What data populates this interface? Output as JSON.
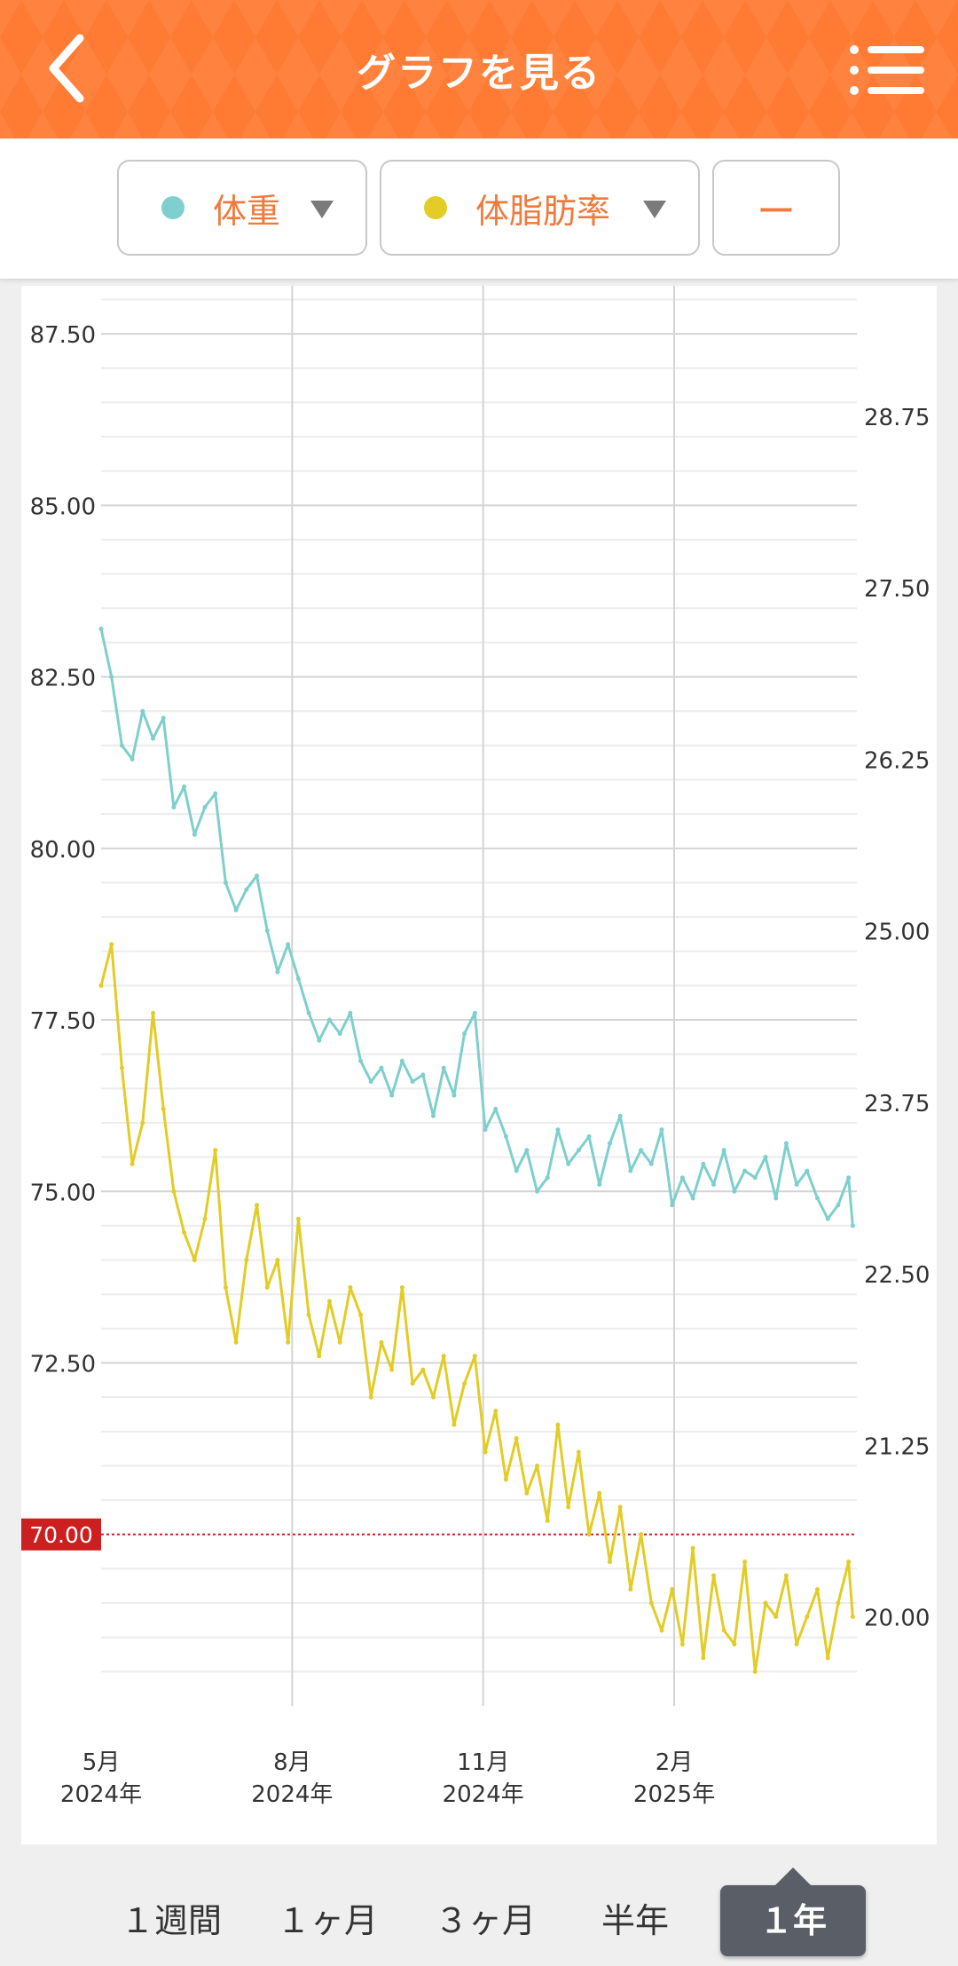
{
  "header": {
    "title": "グラフを見る"
  },
  "selectors": [
    {
      "label": "体重",
      "color": "#7ecfcd"
    },
    {
      "label": "体脂肪率",
      "color": "#e2cc25"
    },
    {
      "label": "ー"
    }
  ],
  "tabs": [
    "１週間",
    "１ヶ月",
    "３ヶ月",
    "半年",
    "１年"
  ],
  "active_tab_index": 4,
  "chart_data": {
    "type": "line",
    "x_range": [
      "2024-05-01",
      "2025-04-30"
    ],
    "x_ticks": [
      {
        "date": "2024-05-01",
        "month": "5月",
        "year": "2024年"
      },
      {
        "date": "2024-08-01",
        "month": "8月",
        "year": "2024年"
      },
      {
        "date": "2024-11-01",
        "month": "11月",
        "year": "2024年"
      },
      {
        "date": "2025-02-01",
        "month": "2月",
        "year": "2025年"
      }
    ],
    "y_left": {
      "range": [
        67.5,
        88.2
      ],
      "ticks": [
        "87.50",
        "85.00",
        "82.50",
        "80.00",
        "77.50",
        "75.00",
        "72.50"
      ]
    },
    "y_right": {
      "range": [
        19.35,
        29.7
      ],
      "ticks": [
        "28.75",
        "27.50",
        "26.25",
        "25.00",
        "23.75",
        "22.50",
        "21.25",
        "20.00"
      ]
    },
    "target_line": {
      "value": 70.0,
      "label": "70.00",
      "color": "#cc1f1f"
    },
    "series": [
      {
        "name": "体重",
        "axis": "left",
        "color": "#7ecfcd",
        "x": [
          "2024-05-01",
          "2024-05-06",
          "2024-05-11",
          "2024-05-16",
          "2024-05-21",
          "2024-05-26",
          "2024-05-31",
          "2024-06-05",
          "2024-06-10",
          "2024-06-15",
          "2024-06-20",
          "2024-06-25",
          "2024-06-30",
          "2024-07-05",
          "2024-07-10",
          "2024-07-15",
          "2024-07-20",
          "2024-07-25",
          "2024-07-30",
          "2024-08-04",
          "2024-08-09",
          "2024-08-14",
          "2024-08-19",
          "2024-08-24",
          "2024-08-29",
          "2024-09-03",
          "2024-09-08",
          "2024-09-13",
          "2024-09-18",
          "2024-09-23",
          "2024-09-28",
          "2024-10-03",
          "2024-10-08",
          "2024-10-13",
          "2024-10-18",
          "2024-10-23",
          "2024-10-28",
          "2024-11-02",
          "2024-11-07",
          "2024-11-12",
          "2024-11-17",
          "2024-11-22",
          "2024-11-27",
          "2024-12-02",
          "2024-12-07",
          "2024-12-12",
          "2024-12-17",
          "2024-12-22",
          "2024-12-27",
          "2025-01-01",
          "2025-01-06",
          "2025-01-11",
          "2025-01-16",
          "2025-01-21",
          "2025-01-26",
          "2025-01-31",
          "2025-02-05",
          "2025-02-10",
          "2025-02-15",
          "2025-02-20",
          "2025-02-25",
          "2025-03-02",
          "2025-03-07",
          "2025-03-12",
          "2025-03-17",
          "2025-03-22",
          "2025-03-27",
          "2025-04-01",
          "2025-04-06",
          "2025-04-11",
          "2025-04-16",
          "2025-04-21",
          "2025-04-26",
          "2025-04-28"
        ],
        "values": [
          83.2,
          82.5,
          81.5,
          81.3,
          82.0,
          81.6,
          81.9,
          80.6,
          80.9,
          80.2,
          80.6,
          80.8,
          79.5,
          79.1,
          79.4,
          79.6,
          78.8,
          78.2,
          78.6,
          78.1,
          77.6,
          77.2,
          77.5,
          77.3,
          77.6,
          76.9,
          76.6,
          76.8,
          76.4,
          76.9,
          76.6,
          76.7,
          76.1,
          76.8,
          76.4,
          77.3,
          77.6,
          75.9,
          76.2,
          75.8,
          75.3,
          75.6,
          75.0,
          75.2,
          75.9,
          75.4,
          75.6,
          75.8,
          75.1,
          75.7,
          76.1,
          75.3,
          75.6,
          75.4,
          75.9,
          74.8,
          75.2,
          74.9,
          75.4,
          75.1,
          75.6,
          75.0,
          75.3,
          75.2,
          75.5,
          74.9,
          75.7,
          75.1,
          75.3,
          74.9,
          74.6,
          74.8,
          75.2,
          74.5
        ]
      },
      {
        "name": "体脂肪率",
        "axis": "right",
        "color": "#e2cc25",
        "x": [
          "2024-05-01",
          "2024-05-06",
          "2024-05-11",
          "2024-05-16",
          "2024-05-21",
          "2024-05-26",
          "2024-05-31",
          "2024-06-05",
          "2024-06-10",
          "2024-06-15",
          "2024-06-20",
          "2024-06-25",
          "2024-06-30",
          "2024-07-05",
          "2024-07-10",
          "2024-07-15",
          "2024-07-20",
          "2024-07-25",
          "2024-07-30",
          "2024-08-04",
          "2024-08-09",
          "2024-08-14",
          "2024-08-19",
          "2024-08-24",
          "2024-08-29",
          "2024-09-03",
          "2024-09-08",
          "2024-09-13",
          "2024-09-18",
          "2024-09-23",
          "2024-09-28",
          "2024-10-03",
          "2024-10-08",
          "2024-10-13",
          "2024-10-18",
          "2024-10-23",
          "2024-10-28",
          "2024-11-02",
          "2024-11-07",
          "2024-11-12",
          "2024-11-17",
          "2024-11-22",
          "2024-11-27",
          "2024-12-02",
          "2024-12-07",
          "2024-12-12",
          "2024-12-17",
          "2024-12-22",
          "2024-12-27",
          "2025-01-01",
          "2025-01-06",
          "2025-01-11",
          "2025-01-16",
          "2025-01-21",
          "2025-01-26",
          "2025-01-31",
          "2025-02-05",
          "2025-02-10",
          "2025-02-15",
          "2025-02-20",
          "2025-02-25",
          "2025-03-02",
          "2025-03-07",
          "2025-03-12",
          "2025-03-17",
          "2025-03-22",
          "2025-03-27",
          "2025-04-01",
          "2025-04-06",
          "2025-04-11",
          "2025-04-16",
          "2025-04-21",
          "2025-04-26",
          "2025-04-28"
        ],
        "values": [
          24.6,
          24.9,
          24.0,
          23.3,
          23.6,
          24.4,
          23.7,
          23.1,
          22.8,
          22.6,
          22.9,
          23.4,
          22.4,
          22.0,
          22.6,
          23.0,
          22.4,
          22.6,
          22.0,
          22.9,
          22.2,
          21.9,
          22.3,
          22.0,
          22.4,
          22.2,
          21.6,
          22.0,
          21.8,
          22.4,
          21.7,
          21.8,
          21.6,
          21.9,
          21.4,
          21.7,
          21.9,
          21.2,
          21.5,
          21.0,
          21.3,
          20.9,
          21.1,
          20.7,
          21.4,
          20.8,
          21.2,
          20.6,
          20.9,
          20.4,
          20.8,
          20.2,
          20.6,
          20.1,
          19.9,
          20.2,
          19.8,
          20.5,
          19.7,
          20.3,
          19.9,
          19.8,
          20.4,
          19.6,
          20.1,
          20.0,
          20.3,
          19.8,
          20.0,
          20.2,
          19.7,
          20.1,
          20.4,
          20.0
        ]
      }
    ]
  }
}
